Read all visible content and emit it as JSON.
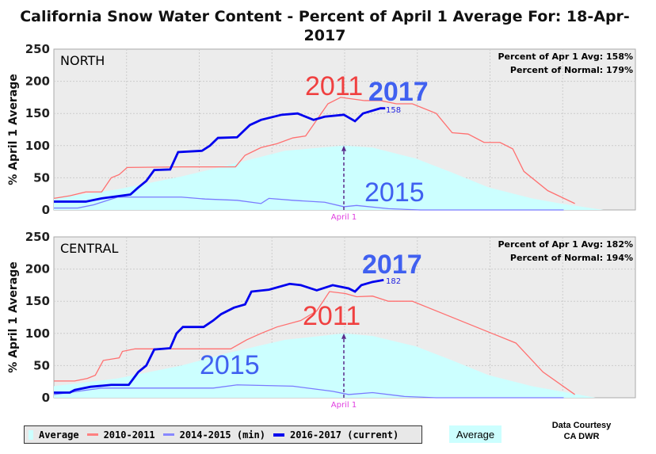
{
  "chart_data": {
    "type": "line",
    "title_line1": "California Snow Water Content - Percent of April 1 Average For: 18-Apr-",
    "title_line2": "2017",
    "ylabel": "% April 1 Average",
    "ylim": [
      0,
      250
    ],
    "yticks": [
      "0",
      "50",
      "100",
      "150",
      "200",
      "250"
    ],
    "x_units": "days since Oct 1 (water year)",
    "xlim": [
      0,
      365
    ],
    "april1_day": 182,
    "april1_label": "April 1",
    "colors": {
      "avg": "#ccffff",
      "y2011": "#ff7070",
      "y2015": "#7a7aff",
      "y2017": "#0000ee"
    },
    "panels": [
      {
        "region": "NORTH",
        "stat1": "Percent of Apr 1 Avg: 158%",
        "stat2": "Percent of Normal: 179%",
        "current_value_label": "158",
        "labels": {
          "l2011": "2011",
          "l2017": "2017",
          "l2015": "2015"
        },
        "series": {
          "average": [
            [
              0,
              18
            ],
            [
              40,
              32
            ],
            [
              80,
              52
            ],
            [
              110,
              70
            ],
            [
              145,
              92
            ],
            [
              182,
              100
            ],
            [
              200,
              97
            ],
            [
              227,
              80
            ],
            [
              250,
              58
            ],
            [
              273,
              35
            ],
            [
              300,
              18
            ],
            [
              318,
              10
            ],
            [
              345,
              0
            ],
            [
              365,
              0
            ]
          ],
          "y2011": [
            [
              0,
              18
            ],
            [
              10,
              22
            ],
            [
              20,
              28
            ],
            [
              30,
              28
            ],
            [
              36,
              50
            ],
            [
              41,
              55
            ],
            [
              46,
              66
            ],
            [
              80,
              67
            ],
            [
              114,
              67
            ],
            [
              120,
              85
            ],
            [
              130,
              97
            ],
            [
              140,
              103
            ],
            [
              150,
              112
            ],
            [
              158,
              115
            ],
            [
              165,
              140
            ],
            [
              172,
              165
            ],
            [
              180,
              175
            ],
            [
              195,
              170
            ],
            [
              205,
              170
            ],
            [
              215,
              165
            ],
            [
              225,
              165
            ],
            [
              240,
              150
            ],
            [
              250,
              120
            ],
            [
              260,
              118
            ],
            [
              270,
              105
            ],
            [
              280,
              105
            ],
            [
              288,
              95
            ],
            [
              295,
              60
            ],
            [
              310,
              30
            ],
            [
              327,
              10
            ]
          ],
          "y2015": [
            [
              0,
              3
            ],
            [
              15,
              3
            ],
            [
              25,
              8
            ],
            [
              40,
              20
            ],
            [
              80,
              20
            ],
            [
              95,
              17
            ],
            [
              115,
              15
            ],
            [
              130,
              10
            ],
            [
              135,
              18
            ],
            [
              150,
              15
            ],
            [
              170,
              12
            ],
            [
              182,
              5
            ],
            [
              190,
              7
            ],
            [
              210,
              2
            ],
            [
              230,
              0
            ],
            [
              320,
              0
            ]
          ],
          "y2017": [
            [
              0,
              13
            ],
            [
              20,
              13
            ],
            [
              30,
              18
            ],
            [
              36,
              20
            ],
            [
              48,
              24
            ],
            [
              53,
              35
            ],
            [
              58,
              45
            ],
            [
              63,
              62
            ],
            [
              73,
              63
            ],
            [
              78,
              90
            ],
            [
              93,
              92
            ],
            [
              98,
              100
            ],
            [
              103,
              112
            ],
            [
              115,
              113
            ],
            [
              123,
              132
            ],
            [
              130,
              140
            ],
            [
              143,
              148
            ],
            [
              153,
              150
            ],
            [
              163,
              140
            ],
            [
              170,
              145
            ],
            [
              182,
              148
            ],
            [
              189,
              138
            ],
            [
              194,
              150
            ],
            [
              205,
              158
            ],
            [
              208,
              158
            ]
          ]
        }
      },
      {
        "region": "CENTRAL",
        "stat1": "Percent of Apr 1 Avg: 182%",
        "stat2": "Percent of Normal: 194%",
        "current_value_label": "182",
        "labels": {
          "l2011": "2011",
          "l2017": "2017",
          "l2015": "2015"
        },
        "series": {
          "average": [
            [
              0,
              18
            ],
            [
              40,
              30
            ],
            [
              80,
              50
            ],
            [
              110,
              70
            ],
            [
              145,
              90
            ],
            [
              182,
              100
            ],
            [
              200,
              96
            ],
            [
              227,
              80
            ],
            [
              250,
              58
            ],
            [
              273,
              35
            ],
            [
              300,
              18
            ],
            [
              318,
              10
            ],
            [
              340,
              0
            ],
            [
              365,
              0
            ]
          ],
          "y2011": [
            [
              0,
              26
            ],
            [
              13,
              26
            ],
            [
              21,
              30
            ],
            [
              26,
              35
            ],
            [
              31,
              58
            ],
            [
              41,
              62
            ],
            [
              43,
              72
            ],
            [
              51,
              76
            ],
            [
              111,
              76
            ],
            [
              121,
              90
            ],
            [
              130,
              100
            ],
            [
              140,
              110
            ],
            [
              155,
              120
            ],
            [
              165,
              135
            ],
            [
              173,
              165
            ],
            [
              183,
              162
            ],
            [
              190,
              157
            ],
            [
              200,
              158
            ],
            [
              210,
              150
            ],
            [
              225,
              150
            ],
            [
              245,
              130
            ],
            [
              265,
              110
            ],
            [
              275,
              100
            ],
            [
              290,
              85
            ],
            [
              307,
              40
            ],
            [
              327,
              5
            ]
          ],
          "y2015": [
            [
              0,
              5
            ],
            [
              30,
              15
            ],
            [
              100,
              15
            ],
            [
              115,
              20
            ],
            [
              150,
              18
            ],
            [
              175,
              10
            ],
            [
              185,
              5
            ],
            [
              200,
              8
            ],
            [
              220,
              2
            ],
            [
              240,
              0
            ],
            [
              320,
              0
            ]
          ],
          "y2017": [
            [
              0,
              8
            ],
            [
              10,
              8
            ],
            [
              13,
              12
            ],
            [
              23,
              17
            ],
            [
              36,
              20
            ],
            [
              47,
              20
            ],
            [
              53,
              40
            ],
            [
              58,
              50
            ],
            [
              63,
              75
            ],
            [
              73,
              77
            ],
            [
              77,
              100
            ],
            [
              81,
              110
            ],
            [
              94,
              110
            ],
            [
              100,
              120
            ],
            [
              105,
              130
            ],
            [
              113,
              140
            ],
            [
              120,
              145
            ],
            [
              124,
              165
            ],
            [
              135,
              168
            ],
            [
              148,
              177
            ],
            [
              155,
              175
            ],
            [
              165,
              167
            ],
            [
              175,
              175
            ],
            [
              185,
              170
            ],
            [
              189,
              165
            ],
            [
              193,
              175
            ],
            [
              200,
              180
            ],
            [
              207,
              183
            ]
          ]
        }
      }
    ]
  },
  "legend": {
    "average": "Average",
    "y2011": "2010-2011",
    "y2015": "2014-2015 (min)",
    "y2017": "2016-2017 (current)"
  },
  "average_box": "Average",
  "courtesy_line1": "Data Courtesy",
  "courtesy_line2": "CA DWR"
}
